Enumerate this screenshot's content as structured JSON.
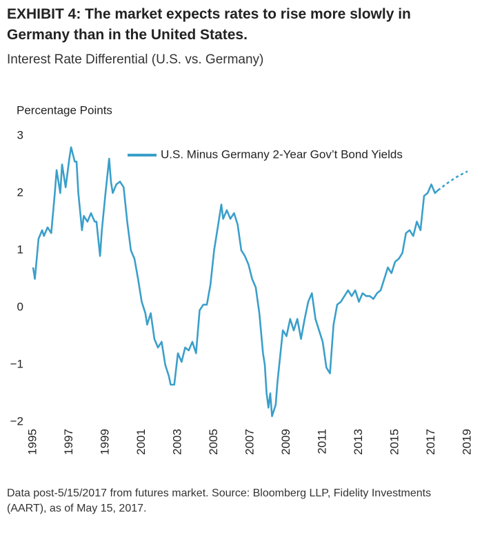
{
  "chart_data": {
    "type": "line",
    "title": "EXHIBIT 4: The market expects rates to rise more slowly in Germany than in the United States.",
    "subtitle": "Interest Rate Differential (U.S. vs. Germany)",
    "y_label": "Percentage Points",
    "footnote": "Data post-5/15/2017 from futures market. Source: Bloomberg LLP, Fidelity Investments (AART), as of May 15, 2017.",
    "xlim": [
      1995,
      2019
    ],
    "xticks": [
      1995,
      1997,
      1999,
      2001,
      2003,
      2005,
      2007,
      2009,
      2011,
      2013,
      2015,
      2017,
      2019
    ],
    "ylim": [
      -2,
      3
    ],
    "yticks": [
      {
        "value": -2,
        "label": "−2"
      },
      {
        "value": -1,
        "label": "−1"
      },
      0,
      1,
      2,
      3
    ],
    "grid": false,
    "legend": "top-right",
    "series": [
      {
        "name": "U.S. Minus Germany 2-Year Gov’t Bond Yields",
        "color": "#3a9fca",
        "x": [
          1995.0,
          1995.1,
          1995.3,
          1995.5,
          1995.6,
          1995.8,
          1996.0,
          1996.2,
          1996.3,
          1996.5,
          1996.6,
          1996.8,
          1997.0,
          1997.1,
          1997.3,
          1997.4,
          1997.5,
          1997.7,
          1997.8,
          1998.0,
          1998.2,
          1998.4,
          1998.5,
          1998.7,
          1998.8,
          1999.0,
          1999.2,
          1999.3,
          1999.4,
          1999.6,
          1999.8,
          2000.0,
          2000.2,
          2000.4,
          2000.6,
          2000.8,
          2001.0,
          2001.2,
          2001.3,
          2001.5,
          2001.7,
          2001.9,
          2002.1,
          2002.3,
          2002.5,
          2002.6,
          2002.8,
          2003.0,
          2003.2,
          2003.4,
          2003.6,
          2003.8,
          2004.0,
          2004.2,
          2004.4,
          2004.6,
          2004.8,
          2005.0,
          2005.2,
          2005.4,
          2005.5,
          2005.7,
          2005.9,
          2006.1,
          2006.3,
          2006.5,
          2006.7,
          2006.9,
          2007.1,
          2007.3,
          2007.5,
          2007.7,
          2007.8,
          2007.9,
          2008.0,
          2008.1,
          2008.2,
          2008.4,
          2008.5,
          2008.6,
          2008.8,
          2009.0,
          2009.2,
          2009.4,
          2009.6,
          2009.8,
          2010.0,
          2010.2,
          2010.4,
          2010.6,
          2010.8,
          2011.0,
          2011.2,
          2011.4,
          2011.6,
          2011.8,
          2012.0,
          2012.2,
          2012.4,
          2012.6,
          2012.8,
          2013.0,
          2013.2,
          2013.4,
          2013.6,
          2013.8,
          2014.0,
          2014.2,
          2014.4,
          2014.6,
          2014.8,
          2015.0,
          2015.2,
          2015.4,
          2015.6,
          2015.8,
          2016.0,
          2016.2,
          2016.4,
          2016.6,
          2016.8,
          2017.0,
          2017.2,
          2017.37
        ],
        "values": [
          0.7,
          0.5,
          1.2,
          1.35,
          1.25,
          1.4,
          1.3,
          2.0,
          2.4,
          2.0,
          2.5,
          2.1,
          2.6,
          2.8,
          2.55,
          2.55,
          2.0,
          1.35,
          1.6,
          1.5,
          1.65,
          1.5,
          1.5,
          0.9,
          1.35,
          2.0,
          2.6,
          2.2,
          2.0,
          2.15,
          2.2,
          2.1,
          1.5,
          1.0,
          0.85,
          0.5,
          0.1,
          -0.1,
          -0.3,
          -0.1,
          -0.55,
          -0.7,
          -0.6,
          -1.0,
          -1.2,
          -1.35,
          -1.35,
          -0.8,
          -0.95,
          -0.7,
          -0.75,
          -0.6,
          -0.8,
          -0.05,
          0.05,
          0.05,
          0.4,
          1.0,
          1.4,
          1.8,
          1.55,
          1.7,
          1.55,
          1.65,
          1.45,
          1.0,
          0.9,
          0.75,
          0.5,
          0.35,
          -0.1,
          -0.8,
          -1.0,
          -1.5,
          -1.75,
          -1.5,
          -1.9,
          -1.7,
          -1.3,
          -1.0,
          -0.4,
          -0.5,
          -0.2,
          -0.4,
          -0.2,
          -0.55,
          -0.2,
          0.1,
          0.25,
          -0.2,
          -0.4,
          -0.6,
          -1.05,
          -1.15,
          -0.3,
          0.05,
          0.1,
          0.2,
          0.3,
          0.2,
          0.3,
          0.1,
          0.25,
          0.2,
          0.2,
          0.15,
          0.25,
          0.3,
          0.5,
          0.7,
          0.6,
          0.8,
          0.85,
          0.95,
          1.3,
          1.35,
          1.25,
          1.5,
          1.35,
          1.95,
          2.0,
          2.15,
          2.0,
          2.05
        ]
      }
    ],
    "projection": {
      "line_style": "dashed",
      "x": [
        2017.37,
        2018.0,
        2018.5,
        2019.0
      ],
      "values": [
        2.05,
        2.2,
        2.3,
        2.38
      ]
    }
  }
}
